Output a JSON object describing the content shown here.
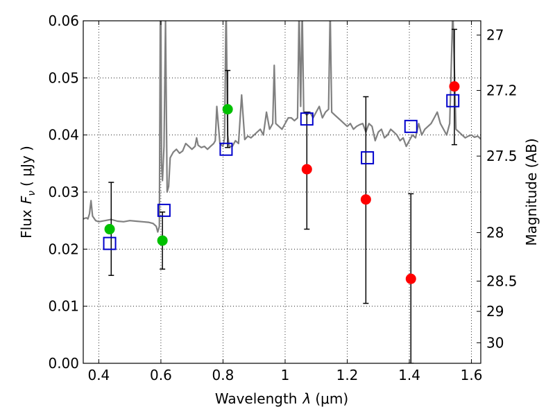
{
  "chart_data": {
    "type": "scatter",
    "xlabel_prefix": "Wavelength",
    "xlabel_symbol": "λ",
    "xlabel_unit": "(μm)",
    "ylabel_prefix": "Flux",
    "ylabel_symbol": "F",
    "ylabel_subscript": "ν",
    "ylabel_unit": "( μJy )",
    "y2label": "Magnitude (AB)",
    "xlim": [
      0.35,
      1.63
    ],
    "ylim": [
      0.0,
      0.06
    ],
    "grid": true,
    "x_ticks": [
      0.4,
      0.6,
      0.8,
      1.0,
      1.2,
      1.4,
      1.6
    ],
    "x_tick_labels": [
      "0.4",
      "0.6",
      "0.8",
      "1",
      "1.2",
      "1.4",
      "1.6"
    ],
    "y_ticks": [
      0.0,
      0.01,
      0.02,
      0.03,
      0.04,
      0.05,
      0.06
    ],
    "y_tick_labels": [
      "0.00",
      "0.01",
      "0.02",
      "0.03",
      "0.04",
      "0.05",
      "0.06"
    ],
    "y2_ticks": [
      {
        "label": "27",
        "flux": 0.0575
      },
      {
        "label": "27.2",
        "flux": 0.0478
      },
      {
        "label": "27.5",
        "flux": 0.0363
      },
      {
        "label": "28",
        "flux": 0.0229
      },
      {
        "label": "28.5",
        "flux": 0.0144
      },
      {
        "label": "29",
        "flux": 0.0091
      },
      {
        "label": "30",
        "flux": 0.0036
      }
    ],
    "series": [
      {
        "kind": "line",
        "color": "#808080",
        "x": [
          0.35,
          0.36,
          0.365,
          0.37,
          0.375,
          0.38,
          0.39,
          0.4,
          0.42,
          0.44,
          0.46,
          0.48,
          0.5,
          0.52,
          0.54,
          0.56,
          0.575,
          0.585,
          0.59,
          0.595,
          0.598,
          0.6,
          0.602,
          0.605,
          0.61,
          0.615,
          0.62,
          0.625,
          0.63,
          0.64,
          0.65,
          0.66,
          0.67,
          0.68,
          0.69,
          0.7,
          0.71,
          0.715,
          0.72,
          0.73,
          0.74,
          0.75,
          0.76,
          0.77,
          0.775,
          0.78,
          0.79,
          0.8,
          0.805,
          0.81,
          0.815,
          0.82,
          0.83,
          0.84,
          0.85,
          0.86,
          0.87,
          0.88,
          0.89,
          0.9,
          0.91,
          0.92,
          0.93,
          0.94,
          0.95,
          0.96,
          0.965,
          0.97,
          0.98,
          0.99,
          1.0,
          1.01,
          1.02,
          1.03,
          1.04,
          1.045,
          1.05,
          1.055,
          1.06,
          1.07,
          1.08,
          1.09,
          1.1,
          1.11,
          1.12,
          1.13,
          1.14,
          1.145,
          1.15,
          1.16,
          1.17,
          1.18,
          1.19,
          1.2,
          1.21,
          1.22,
          1.23,
          1.24,
          1.25,
          1.26,
          1.27,
          1.28,
          1.29,
          1.3,
          1.31,
          1.32,
          1.33,
          1.34,
          1.35,
          1.36,
          1.37,
          1.38,
          1.39,
          1.4,
          1.41,
          1.42,
          1.43,
          1.44,
          1.45,
          1.46,
          1.47,
          1.48,
          1.49,
          1.5,
          1.51,
          1.52,
          1.53,
          1.54,
          1.55,
          1.56,
          1.57,
          1.58,
          1.59,
          1.6,
          1.61,
          1.62,
          1.63
        ],
        "y": [
          0.0253,
          0.0255,
          0.0253,
          0.0262,
          0.0285,
          0.0258,
          0.025,
          0.0248,
          0.025,
          0.0252,
          0.0249,
          0.0248,
          0.025,
          0.0249,
          0.0248,
          0.0247,
          0.0245,
          0.024,
          0.023,
          0.024,
          0.06,
          0.062,
          0.035,
          0.032,
          0.038,
          0.06,
          0.03,
          0.031,
          0.036,
          0.037,
          0.0375,
          0.0368,
          0.0372,
          0.0385,
          0.038,
          0.0375,
          0.038,
          0.0395,
          0.0382,
          0.0378,
          0.038,
          0.0375,
          0.038,
          0.0385,
          0.039,
          0.045,
          0.0385,
          0.038,
          0.0395,
          0.063,
          0.04,
          0.038,
          0.038,
          0.039,
          0.0385,
          0.047,
          0.0392,
          0.0398,
          0.0395,
          0.04,
          0.0405,
          0.041,
          0.04,
          0.044,
          0.041,
          0.042,
          0.0522,
          0.042,
          0.0415,
          0.041,
          0.042,
          0.043,
          0.043,
          0.0425,
          0.043,
          0.062,
          0.045,
          0.062,
          0.044,
          0.0435,
          0.044,
          0.043,
          0.044,
          0.045,
          0.043,
          0.044,
          0.0445,
          0.062,
          0.044,
          0.0435,
          0.043,
          0.0425,
          0.042,
          0.0415,
          0.042,
          0.041,
          0.0415,
          0.0418,
          0.042,
          0.0405,
          0.042,
          0.0415,
          0.039,
          0.0405,
          0.041,
          0.0395,
          0.04,
          0.041,
          0.0405,
          0.04,
          0.039,
          0.0395,
          0.038,
          0.039,
          0.04,
          0.0395,
          0.042,
          0.04,
          0.041,
          0.0415,
          0.042,
          0.043,
          0.044,
          0.042,
          0.041,
          0.04,
          0.042,
          0.062,
          0.041,
          0.0405,
          0.04,
          0.0395,
          0.0398,
          0.04,
          0.0396,
          0.0398,
          0.0393
        ]
      },
      {
        "kind": "errorbar",
        "color": "#000000",
        "x": [
          0.44,
          0.605,
          0.815,
          1.07,
          1.26,
          1.405,
          1.545
        ],
        "y": [
          0.0235,
          0.0215,
          0.0445,
          0.034,
          0.0287,
          0.0148,
          0.0485
        ],
        "lower": [
          0.0154,
          0.0165,
          0.0378,
          0.0235,
          0.0105,
          0.0,
          0.0383
        ],
        "upper": [
          0.0317,
          0.0265,
          0.0513,
          0.044,
          0.0467,
          0.0297,
          0.0585
        ]
      },
      {
        "kind": "points",
        "color": "#00c000",
        "x": [
          0.435,
          0.605,
          0.815
        ],
        "y": [
          0.0235,
          0.0215,
          0.0445
        ]
      },
      {
        "kind": "points",
        "color": "#ff0000",
        "x": [
          1.07,
          1.26,
          1.405,
          1.545
        ],
        "y": [
          0.034,
          0.0287,
          0.0148,
          0.0485
        ]
      },
      {
        "kind": "squares",
        "color": "#0000cc",
        "x": [
          0.435,
          0.61,
          0.81,
          1.07,
          1.265,
          1.405,
          1.54
        ],
        "y": [
          0.021,
          0.0268,
          0.0375,
          0.0428,
          0.036,
          0.0415,
          0.046
        ]
      }
    ]
  }
}
